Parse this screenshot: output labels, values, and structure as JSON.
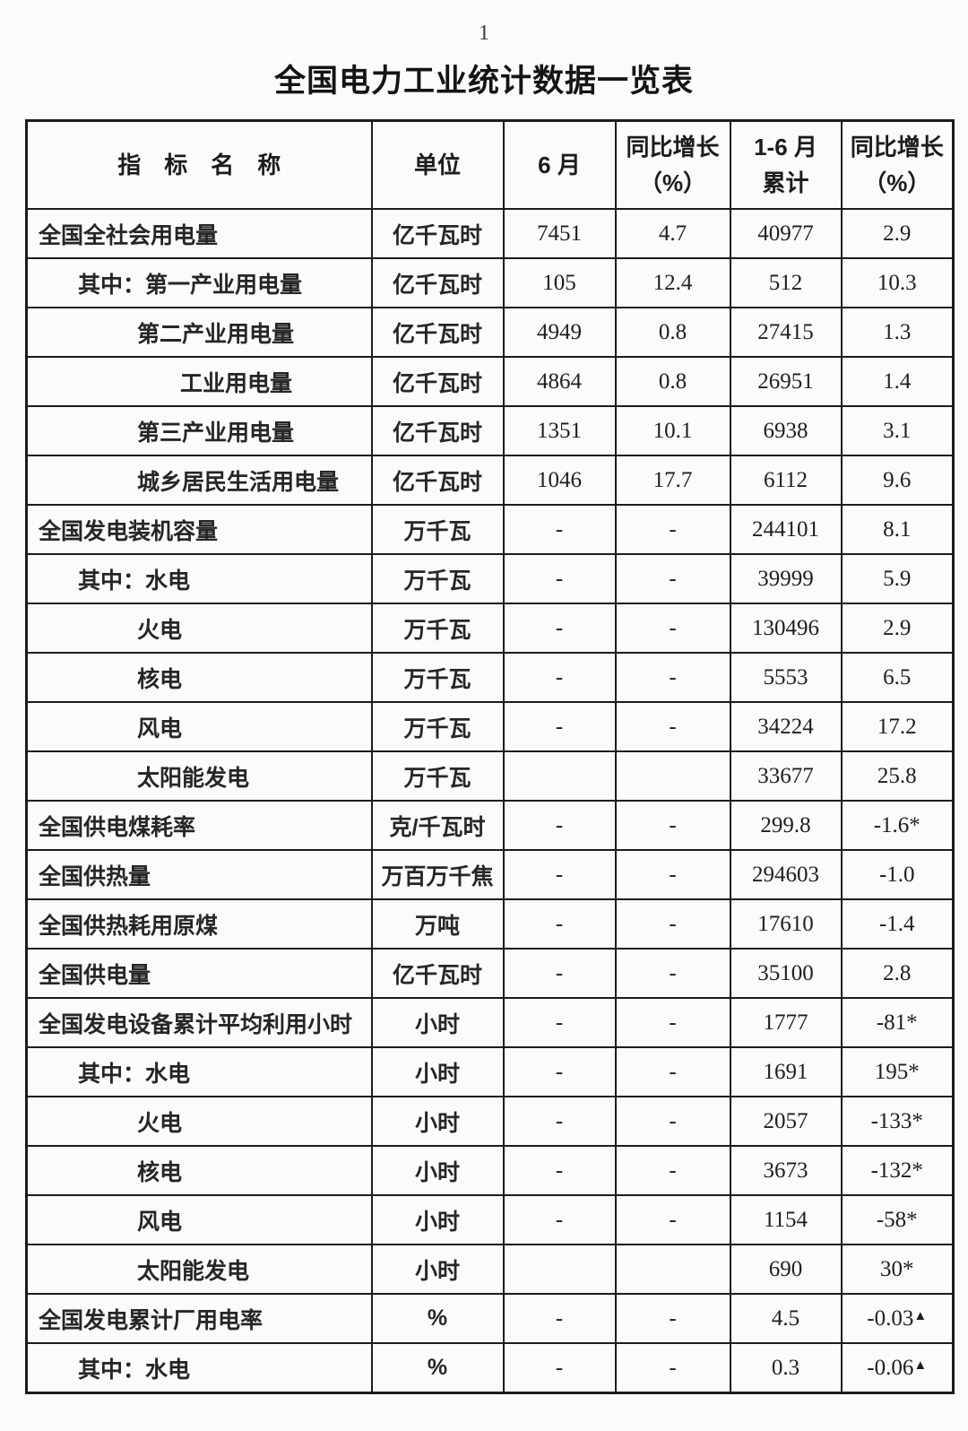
{
  "page_number": "1",
  "title": "全国电力工业统计数据一览表",
  "table": {
    "headers": [
      {
        "line1": "指　标　名　称",
        "line2": ""
      },
      {
        "line1": "单位",
        "line2": ""
      },
      {
        "line1": "6 月",
        "line2": ""
      },
      {
        "line1": "同比增长",
        "line2": "（%）"
      },
      {
        "line1": "1-6 月",
        "line2": "累计"
      },
      {
        "line1": "同比增长",
        "line2": "（%）"
      }
    ],
    "rows": [
      {
        "label": "全国全社会用电量",
        "indent": 0,
        "unit": "亿千瓦时",
        "jun": "7451",
        "jun_yoy": "4.7",
        "cum": "40977",
        "cum_yoy": "2.9"
      },
      {
        "label": "其中：第一产业用电量",
        "indent": 1,
        "unit": "亿千瓦时",
        "jun": "105",
        "jun_yoy": "12.4",
        "cum": "512",
        "cum_yoy": "10.3"
      },
      {
        "label": "第二产业用电量",
        "indent": 2,
        "unit": "亿千瓦时",
        "jun": "4949",
        "jun_yoy": "0.8",
        "cum": "27415",
        "cum_yoy": "1.3"
      },
      {
        "label": "工业用电量",
        "indent": 3,
        "unit": "亿千瓦时",
        "jun": "4864",
        "jun_yoy": "0.8",
        "cum": "26951",
        "cum_yoy": "1.4"
      },
      {
        "label": "第三产业用电量",
        "indent": 2,
        "unit": "亿千瓦时",
        "jun": "1351",
        "jun_yoy": "10.1",
        "cum": "6938",
        "cum_yoy": "3.1"
      },
      {
        "label": "城乡居民生活用电量",
        "indent": 2,
        "unit": "亿千瓦时",
        "jun": "1046",
        "jun_yoy": "17.7",
        "cum": "6112",
        "cum_yoy": "9.6"
      },
      {
        "label": "全国发电装机容量",
        "indent": 0,
        "unit": "万千瓦",
        "jun": "-",
        "jun_yoy": "-",
        "cum": "244101",
        "cum_yoy": "8.1"
      },
      {
        "label": "其中：水电",
        "indent": 1,
        "unit": "万千瓦",
        "jun": "-",
        "jun_yoy": "-",
        "cum": "39999",
        "cum_yoy": "5.9"
      },
      {
        "label": "火电",
        "indent": 2,
        "unit": "万千瓦",
        "jun": "-",
        "jun_yoy": "-",
        "cum": "130496",
        "cum_yoy": "2.9"
      },
      {
        "label": "核电",
        "indent": 2,
        "unit": "万千瓦",
        "jun": "-",
        "jun_yoy": "-",
        "cum": "5553",
        "cum_yoy": "6.5"
      },
      {
        "label": "风电",
        "indent": 2,
        "unit": "万千瓦",
        "jun": "-",
        "jun_yoy": "-",
        "cum": "34224",
        "cum_yoy": "17.2"
      },
      {
        "label": "太阳能发电",
        "indent": 2,
        "unit": "万千瓦",
        "jun": "",
        "jun_yoy": "",
        "cum": "33677",
        "cum_yoy": "25.8"
      },
      {
        "label": "全国供电煤耗率",
        "indent": 0,
        "unit": "克/千瓦时",
        "jun": "-",
        "jun_yoy": "-",
        "cum": "299.8",
        "cum_yoy": "-1.6*"
      },
      {
        "label": "全国供热量",
        "indent": 0,
        "unit": "万百万千焦",
        "jun": "-",
        "jun_yoy": "-",
        "cum": "294603",
        "cum_yoy": "-1.0"
      },
      {
        "label": "全国供热耗用原煤",
        "indent": 0,
        "unit": "万吨",
        "jun": "-",
        "jun_yoy": "-",
        "cum": "17610",
        "cum_yoy": "-1.4"
      },
      {
        "label": "全国供电量",
        "indent": 0,
        "unit": "亿千瓦时",
        "jun": "-",
        "jun_yoy": "-",
        "cum": "35100",
        "cum_yoy": "2.8"
      },
      {
        "label": "全国发电设备累计平均利用小时",
        "indent": 0,
        "unit": "小时",
        "jun": "-",
        "jun_yoy": "-",
        "cum": "1777",
        "cum_yoy": "-81*"
      },
      {
        "label": "其中：水电",
        "indent": 1,
        "unit": "小时",
        "jun": "-",
        "jun_yoy": "-",
        "cum": "1691",
        "cum_yoy": "195*"
      },
      {
        "label": "火电",
        "indent": 2,
        "unit": "小时",
        "jun": "-",
        "jun_yoy": "-",
        "cum": "2057",
        "cum_yoy": "-133*"
      },
      {
        "label": "核电",
        "indent": 2,
        "unit": "小时",
        "jun": "-",
        "jun_yoy": "-",
        "cum": "3673",
        "cum_yoy": "-132*"
      },
      {
        "label": "风电",
        "indent": 2,
        "unit": "小时",
        "jun": "-",
        "jun_yoy": "-",
        "cum": "1154",
        "cum_yoy": "-58*"
      },
      {
        "label": "太阳能发电",
        "indent": 2,
        "unit": "小时",
        "jun": "",
        "jun_yoy": "",
        "cum": "690",
        "cum_yoy": "30*"
      },
      {
        "label": "全国发电累计厂用电率",
        "indent": 0,
        "unit": "%",
        "jun": "-",
        "jun_yoy": "-",
        "cum": "4.5",
        "cum_yoy": "-0.03▲"
      },
      {
        "label": "其中：水电",
        "indent": 1,
        "unit": "%",
        "jun": "-",
        "jun_yoy": "-",
        "cum": "0.3",
        "cum_yoy": "-0.06▲"
      }
    ]
  }
}
